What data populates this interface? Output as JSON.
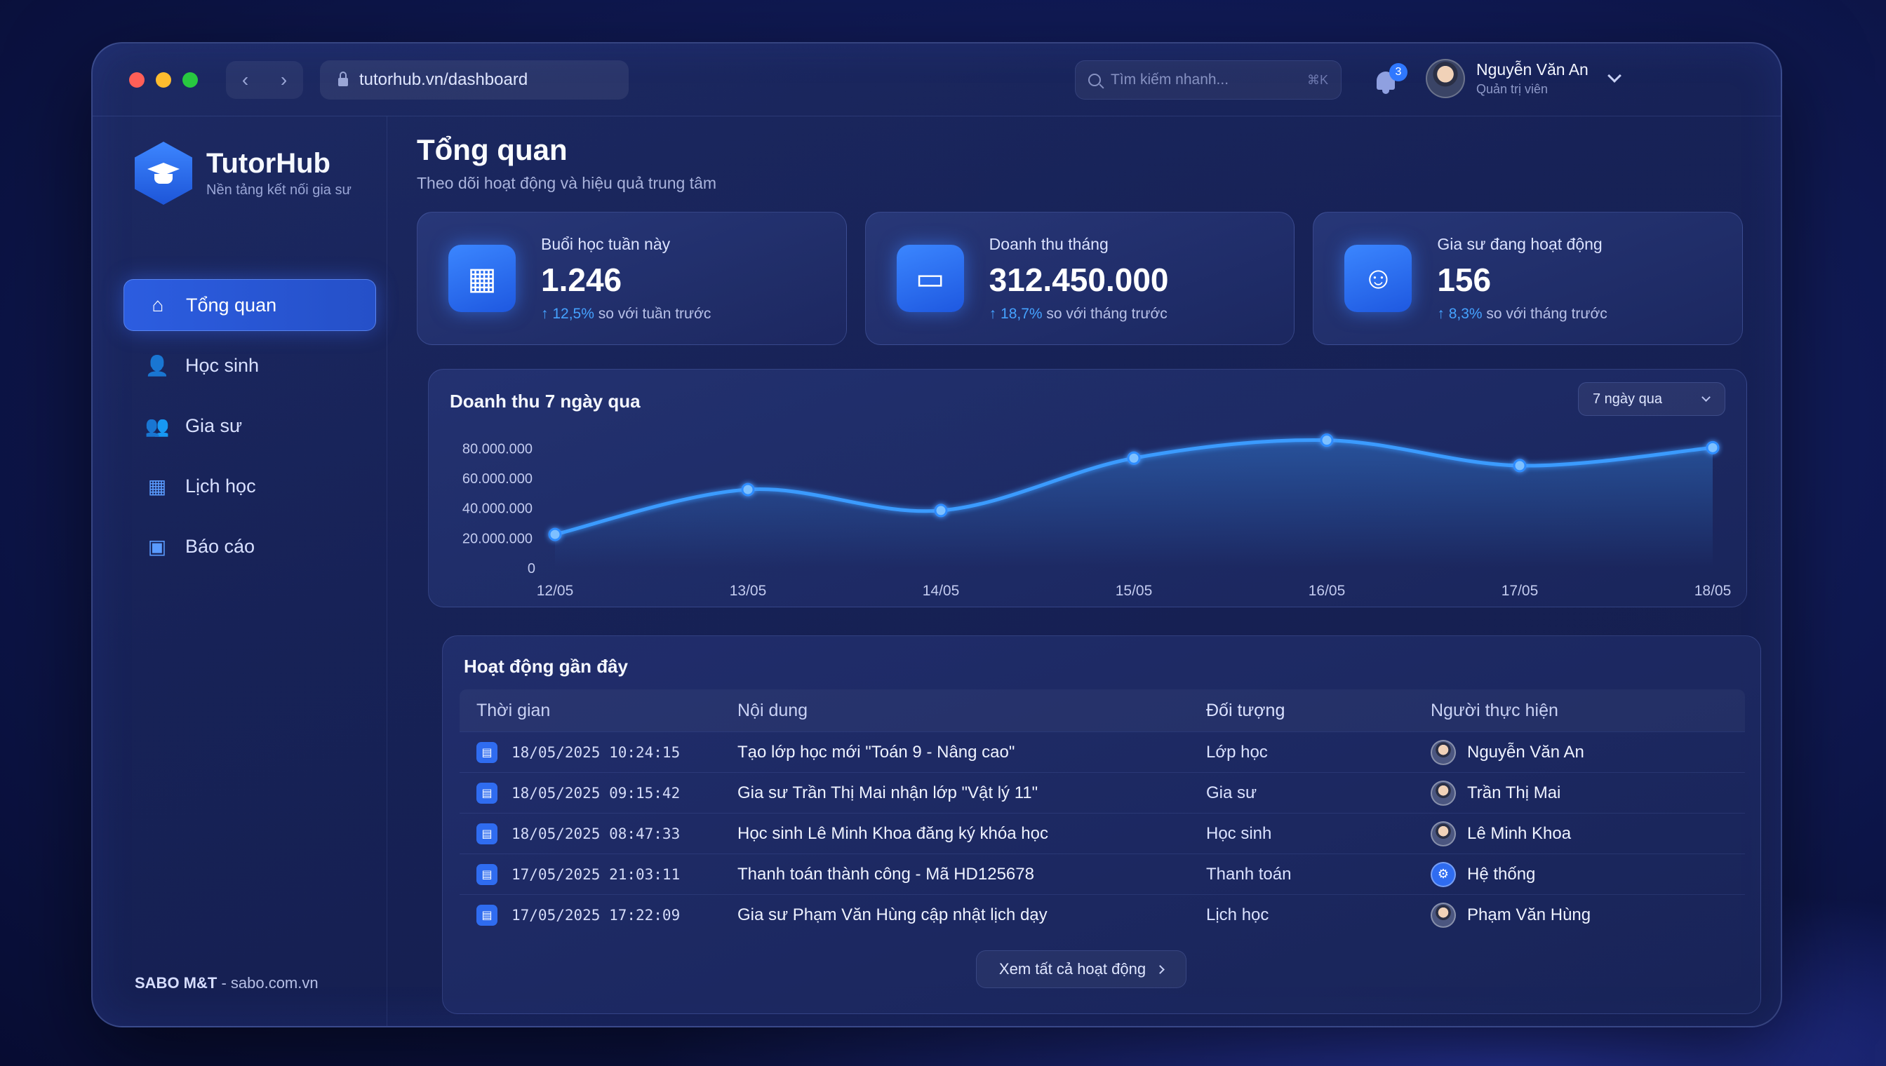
{
  "browser": {
    "url": "tutorhub.vn/dashboard",
    "back_symbol": "‹",
    "forward_symbol": "›"
  },
  "search": {
    "placeholder": "Tìm kiếm nhanh...",
    "shortcut": "⌘K"
  },
  "notifications": {
    "count": "3"
  },
  "user": {
    "name": "Nguyễn Văn An",
    "role": "Quản trị viên"
  },
  "brand": {
    "name": "TutorHub",
    "tagline": "Nền tảng kết nối gia sư"
  },
  "sidebar": {
    "items": [
      {
        "label": "Tổng quan",
        "icon": "home-icon",
        "glyph": "⌂",
        "active": true
      },
      {
        "label": "Học sinh",
        "icon": "student-icon",
        "glyph": "👤",
        "active": false
      },
      {
        "label": "Gia sư",
        "icon": "tutor-icon",
        "glyph": "👥",
        "active": false
      },
      {
        "label": "Lịch học",
        "icon": "calendar-icon",
        "glyph": "▦",
        "active": false
      },
      {
        "label": "Báo cáo",
        "icon": "report-icon",
        "glyph": "▣",
        "active": false
      }
    ],
    "footer_brand": "SABO M&T",
    "footer_site": " - sabo.com.vn"
  },
  "main": {
    "title": "Tổng quan",
    "subtitle": "Theo dõi hoạt động và hiệu quả trung tâm"
  },
  "stats": [
    {
      "label": "Buổi học tuần này",
      "value": "1.246",
      "delta": "12,5%",
      "delta_text": " so với tuần trước",
      "icon": "calendar-icon",
      "glyph": "▦"
    },
    {
      "label": "Doanh thu tháng",
      "value": "312.450.000",
      "delta": "18,7%",
      "delta_text": " so với tháng trước",
      "icon": "wallet-icon",
      "glyph": "▭"
    },
    {
      "label": "Gia sư đang hoạt động",
      "value": "156",
      "delta": "8,3%",
      "delta_text": " so với tháng trước",
      "icon": "graduate-icon",
      "glyph": "☺"
    }
  ],
  "chart_panel": {
    "title": "Doanh thu 7 ngày qua",
    "range": "7 ngày qua"
  },
  "chart_data": {
    "type": "area",
    "title": "Doanh thu 7 ngày qua",
    "categories": [
      "12/05",
      "13/05",
      "14/05",
      "15/05",
      "16/05",
      "17/05",
      "18/05"
    ],
    "values": [
      22000000,
      52000000,
      38000000,
      73000000,
      85000000,
      68000000,
      80000000
    ],
    "yticks": [
      "0",
      "20.000.000",
      "40.000.000",
      "60.000.000",
      "80.000.000"
    ],
    "ytick_values": [
      0,
      20000000,
      40000000,
      60000000,
      80000000
    ],
    "ylim": [
      0,
      90000000
    ],
    "grid": false,
    "color": "#3b9bff"
  },
  "activity": {
    "title": "Hoạt động gần đây",
    "columns": [
      "Thời gian",
      "Nội dung",
      "Đối tượng",
      "Người thực hiện"
    ],
    "rows": [
      {
        "time": "18/05/2025 10:24:15",
        "content": "Tạo lớp học mới \"Toán 9 - Nâng cao\"",
        "target": "Lớp học",
        "actor": "Nguyễn Văn An",
        "system": false
      },
      {
        "time": "18/05/2025 09:15:42",
        "content": "Gia sư Trần Thị Mai nhận lớp \"Vật lý 11\"",
        "target": "Gia sư",
        "actor": "Trần Thị Mai",
        "system": false
      },
      {
        "time": "18/05/2025 08:47:33",
        "content": "Học sinh Lê Minh Khoa đăng ký khóa học",
        "target": "Học sinh",
        "actor": "Lê Minh Khoa",
        "system": false
      },
      {
        "time": "17/05/2025 21:03:11",
        "content": "Thanh toán thành công - Mã HD125678",
        "target": "Thanh toán",
        "actor": "Hệ thống",
        "system": true
      },
      {
        "time": "17/05/2025 17:22:09",
        "content": "Gia sư Phạm Văn Hùng cập nhật lịch dạy",
        "target": "Lịch học",
        "actor": "Phạm Văn Hùng",
        "system": false
      }
    ],
    "view_all": "Xem tất cả hoạt động"
  }
}
